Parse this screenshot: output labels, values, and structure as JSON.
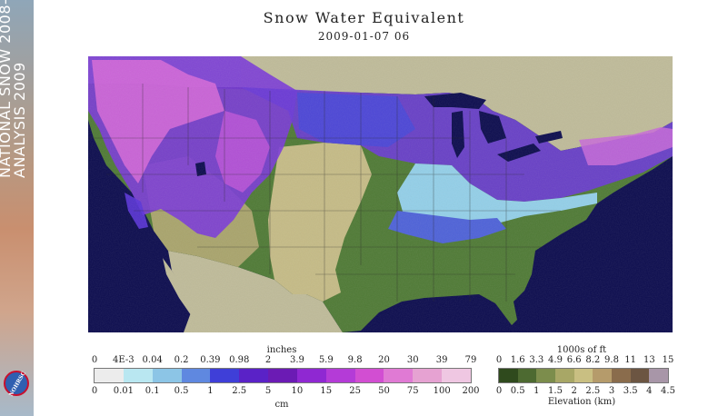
{
  "banner": {
    "line1": "NATIONAL SNOW 2008-",
    "line2": "ANALYSIS 2009",
    "logo_text": "NOHRSC"
  },
  "title": "Snow Water Equivalent",
  "subtitle": "2009-01-07 06",
  "swe_legend": {
    "top_unit": "inches",
    "bottom_unit": "cm",
    "inch_ticks": [
      "0",
      "4E-3",
      "0.04",
      "0.2",
      "0.39",
      "0.98",
      "2",
      "3.9",
      "5.9",
      "9.8",
      "20",
      "30",
      "39",
      "79"
    ],
    "cm_ticks": [
      "0",
      "0.01",
      "0.1",
      "0.5",
      "1",
      "2.5",
      "5",
      "10",
      "15",
      "25",
      "50",
      "75",
      "100",
      "200"
    ],
    "colors": [
      "#ececec",
      "#b9e7f1",
      "#8cc5e6",
      "#5f88e0",
      "#3f3fd8",
      "#5a22c7",
      "#6b1bb4",
      "#8f28d2",
      "#b43bd7",
      "#d24ed2",
      "#e07ad4",
      "#e6a2d2",
      "#efc7e2"
    ]
  },
  "elev_legend": {
    "top_unit": "1000s of ft",
    "bottom_unit": "Elevation (km)",
    "ft_ticks": [
      "0",
      "1.6",
      "3.3",
      "4.9",
      "6.6",
      "8.2",
      "9.8",
      "11",
      "13",
      "15"
    ],
    "km_ticks": [
      "0",
      "0.5",
      "1",
      "1.5",
      "2",
      "2.5",
      "3",
      "3.5",
      "4",
      "4.5"
    ],
    "colors": [
      "#2f4a1d",
      "#4d6a31",
      "#7c8d4c",
      "#a8a766",
      "#c9bf82",
      "#b59b6b",
      "#8a6c4c",
      "#6c5542",
      "#a896a8"
    ]
  }
}
